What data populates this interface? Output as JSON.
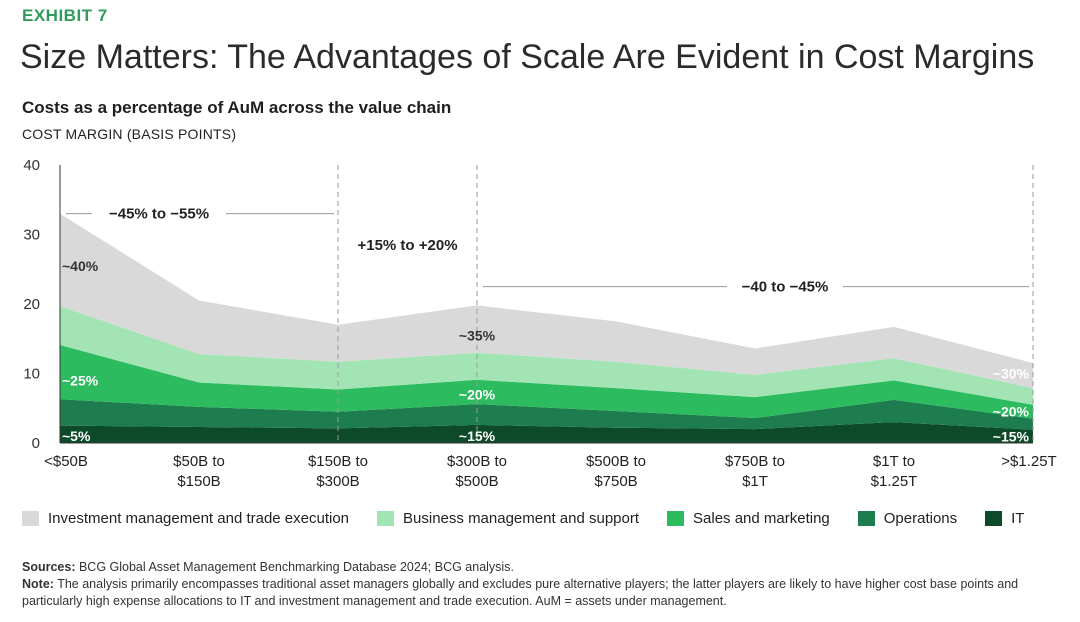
{
  "exhibit_label": "EXHIBIT 7",
  "title": "Size Matters: The Advantages of Scale Are Evident in Cost Margins",
  "subtitle": "Costs as a percentage of AuM across the value chain",
  "footer": {
    "sources_label": "Sources:",
    "sources_text": " BCG Global Asset Management Benchmarking Database 2024; BCG analysis.",
    "note_label": "Note:",
    "note_text": " The analysis primarily encompasses traditional asset managers globally and excludes pure alternative players; the latter players are likely to have higher cost base points and particularly high expense allocations to IT and investment management and trade execution. AuM = assets under management."
  },
  "chart_data": {
    "type": "area",
    "stacked": true,
    "ylabel": "COST MARGIN (BASIS POINTS)",
    "ylim": [
      0,
      40
    ],
    "yticks": [
      "0",
      "10",
      "20",
      "30",
      "40"
    ],
    "grid": false,
    "legend_position": "bottom",
    "categories": [
      [
        "<$50B"
      ],
      [
        "$50B to",
        "$150B"
      ],
      [
        "$150B to",
        "$300B"
      ],
      [
        "$300B to",
        "$500B"
      ],
      [
        "$500B to",
        "$750B"
      ],
      [
        "$750B to",
        "$1T"
      ],
      [
        "$1T to",
        "$1.25T"
      ],
      [
        ">$1.25T"
      ]
    ],
    "series": [
      {
        "name": "IT",
        "color": "#0d4a2a",
        "values": [
          2.5,
          2.3,
          2.1,
          2.6,
          2.2,
          2.0,
          3.0,
          1.9
        ]
      },
      {
        "name": "Operations",
        "color": "#1e7d4e",
        "values": [
          3.8,
          2.9,
          2.4,
          3.0,
          2.4,
          1.6,
          3.2,
          1.6
        ]
      },
      {
        "name": "Sales and marketing",
        "color": "#2dbb5f",
        "values": [
          7.8,
          3.5,
          3.2,
          3.5,
          3.3,
          3.0,
          2.8,
          2.0
        ]
      },
      {
        "name": "Business management and support",
        "color": "#a3e4b4",
        "values": [
          5.6,
          4.1,
          4.0,
          3.9,
          3.8,
          3.2,
          3.2,
          2.4
        ]
      },
      {
        "name": "Investment management and trade execution",
        "color": "#d9d9d9",
        "values": [
          13.3,
          7.7,
          5.3,
          6.8,
          5.8,
          3.8,
          4.5,
          3.6
        ]
      }
    ],
    "legend_order": [
      "Investment management and trade execution",
      "Business management and support",
      "Sales and marketing",
      "Operations",
      "IT"
    ],
    "annotations": {
      "percent_labels": [
        {
          "text": "~40%",
          "category": 0,
          "y": 25.5
        },
        {
          "text": "~25%",
          "category": 0,
          "y": 9.0
        },
        {
          "text": "~5%",
          "category": 0,
          "y": 1.0
        },
        {
          "text": "~35%",
          "category": 3,
          "y": 15.5
        },
        {
          "text": "~20%",
          "category": 3,
          "y": 7.0
        },
        {
          "text": "~15%",
          "category": 3,
          "y": 1.0
        },
        {
          "text": "~30%",
          "category": 7,
          "y": 10.0
        },
        {
          "text": "~20%",
          "category": 7,
          "y": 4.5
        },
        {
          "text": "~15%",
          "category": 7,
          "y": 0.9
        }
      ],
      "ranges": [
        {
          "text": "−45% to −55%",
          "from": 0,
          "to": 2,
          "y": 33.0
        },
        {
          "text": "+15% to +20%",
          "from": 2,
          "to": 3,
          "y": 28.5
        },
        {
          "text": "−40 to −45%",
          "from": 3,
          "to": 7,
          "y": 22.5
        }
      ],
      "dividers": [
        2,
        3,
        7
      ]
    }
  }
}
